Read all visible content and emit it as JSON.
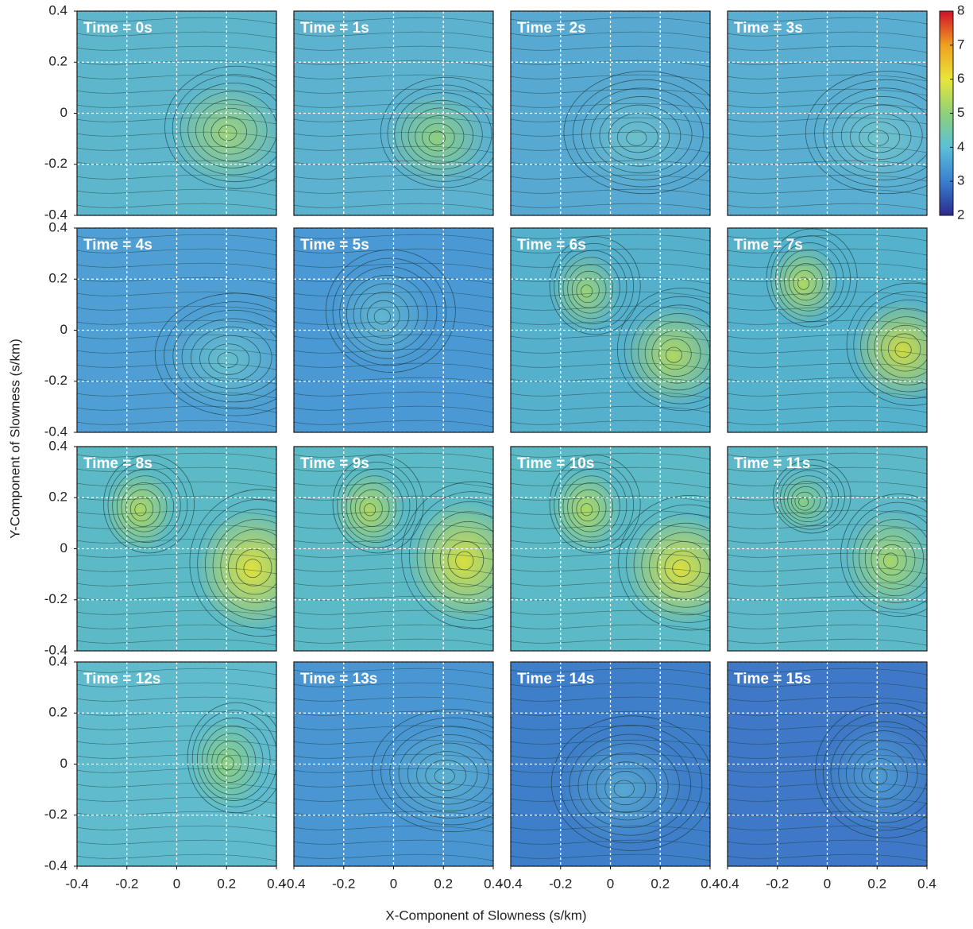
{
  "chart_data": {
    "type": "contour",
    "panels": [
      "Time = 0s",
      "Time = 1s",
      "Time = 2s",
      "Time = 3s",
      "Time = 4s",
      "Time = 5s",
      "Time = 6s",
      "Time = 7s",
      "Time = 8s",
      "Time = 9s",
      "Time = 10s",
      "Time = 11s",
      "Time = 12s",
      "Time = 13s",
      "Time = 14s",
      "Time = 15s"
    ],
    "xlabel": "X-Component of Slowness (s/km)",
    "ylabel": "Y-Component of Slowness (s/km)",
    "xlim": [
      -0.4,
      0.4
    ],
    "ylim": [
      -0.4,
      0.4
    ],
    "xticks": [
      -0.4,
      -0.2,
      0,
      0.2,
      0.4
    ],
    "yticks": [
      -0.4,
      -0.2,
      0,
      0.2,
      0.4
    ],
    "grid": true,
    "colorbar": {
      "lim": [
        2,
        8
      ],
      "ticks": [
        2,
        3,
        4,
        5,
        6,
        7,
        8
      ]
    }
  }
}
